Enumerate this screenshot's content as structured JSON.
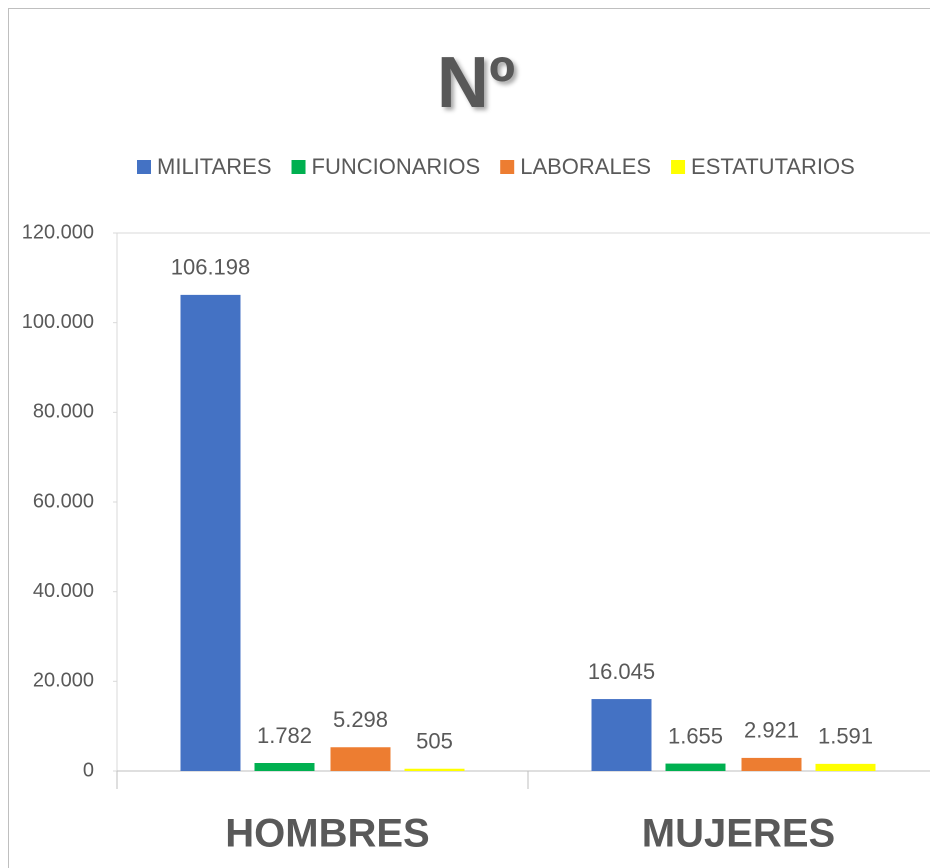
{
  "chart_data": {
    "type": "bar",
    "title": "Nº",
    "categories": [
      "HOMBRES",
      "MUJERES"
    ],
    "series": [
      {
        "name": "MILITARES",
        "color": "#4472c4",
        "values": [
          106198,
          16045
        ],
        "value_labels": [
          "106.198",
          "16.045"
        ]
      },
      {
        "name": "FUNCIONARIOS",
        "color": "#00b050",
        "values": [
          1782,
          1655
        ],
        "value_labels": [
          "1.782",
          "1.655"
        ]
      },
      {
        "name": "LABORALES",
        "color": "#ed7d31",
        "values": [
          5298,
          2921
        ],
        "value_labels": [
          "5.298",
          "2.921"
        ]
      },
      {
        "name": "ESTATUTARIOS",
        "color": "#ffff00",
        "values": [
          505,
          1591
        ],
        "value_labels": [
          "505",
          "1.591"
        ]
      }
    ],
    "ylim": [
      0,
      120000
    ],
    "yticks": [
      0,
      {
        "value": 20000,
        "label": "20.000"
      },
      {
        "value": 40000,
        "label": "40.000"
      },
      {
        "value": 60000,
        "label": "60.000"
      },
      {
        "value": 80000,
        "label": "80.000"
      },
      {
        "value": 100000,
        "label": "100.000"
      },
      {
        "value": 120000,
        "label": "120.000"
      }
    ],
    "grid": false,
    "legend": "top"
  }
}
